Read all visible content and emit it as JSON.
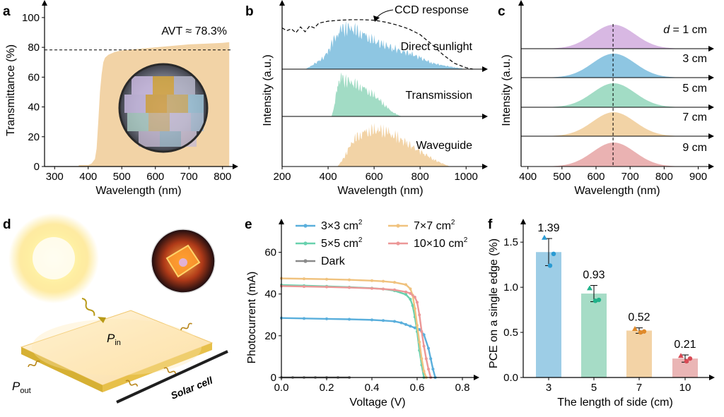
{
  "panel_letters": [
    "a",
    "b",
    "c",
    "d",
    "e",
    "f"
  ],
  "colors": {
    "tan": "#f2d3a6",
    "blue": "#8ec6e2",
    "green": "#a2dcc5",
    "purple": "#d8b8e3",
    "pink": "#eab2b2",
    "e_blue": "#5aafdc",
    "e_green": "#68d1ae",
    "e_orange": "#f0c27e",
    "e_pink": "#ec9797",
    "e_dark": "#8a8a8a",
    "f_blue": "#9dcde6",
    "f_green": "#a6dcc6",
    "f_tan": "#f3d3a6",
    "f_pink": "#eab5b5"
  },
  "panel_d": {
    "labels": {
      "p_in": "P",
      "p_in_sub": "in",
      "p_out": "P",
      "p_out_sub": "out",
      "solar_cell": "Solar cell"
    },
    "icons": [
      "sun-icon",
      "waveguide-slab",
      "solar-cell-bar",
      "photo-icon"
    ]
  },
  "chart_data": [
    {
      "panel": "a",
      "type": "area",
      "xlabel": "Wavelength (nm)",
      "ylabel": "Transmittance (%)",
      "xlim": [
        270,
        830
      ],
      "ylim": [
        0,
        108
      ],
      "xticks": [
        300,
        400,
        500,
        600,
        700,
        800
      ],
      "yticks": [
        0,
        20,
        40,
        60,
        80,
        100
      ],
      "annotation": "AVT ≈ 78.3%",
      "reference_line_y": 78.3,
      "x": [
        372,
        400,
        410,
        420,
        425,
        430,
        435,
        440,
        445,
        450,
        460,
        480,
        500,
        550,
        600,
        650,
        700,
        750,
        800,
        820
      ],
      "y": [
        1,
        1,
        2,
        5,
        12,
        30,
        50,
        62,
        70,
        73,
        75,
        77,
        78,
        79,
        80,
        81,
        82,
        82.5,
        83,
        83.5
      ],
      "inset": "photo"
    },
    {
      "panel": "b",
      "type": "area",
      "xlabel": "Wavelength (nm)",
      "ylabel": "Intensity (a.u.)",
      "xlim": [
        200,
        1070
      ],
      "xticks": [
        200,
        400,
        600,
        800,
        1000
      ],
      "series": [
        {
          "name": "Direct sunlight",
          "x": [
            300,
            320,
            350,
            380,
            400,
            420,
            440,
            460,
            480,
            500,
            520,
            540,
            560,
            580,
            600,
            640,
            680,
            720,
            760,
            800,
            850,
            900,
            950,
            1000
          ],
          "values": [
            0,
            0.05,
            0.15,
            0.25,
            0.4,
            0.6,
            0.78,
            0.88,
            0.92,
            0.9,
            0.85,
            0.8,
            0.74,
            0.68,
            0.62,
            0.54,
            0.47,
            0.4,
            0.34,
            0.25,
            0.14,
            0.08,
            0.04,
            0
          ]
        },
        {
          "name": "Transmission",
          "x": [
            415,
            430,
            440,
            450,
            460,
            480,
            500,
            520,
            540,
            560,
            580,
            600,
            620,
            640,
            660,
            680,
            700,
            720
          ],
          "values": [
            0,
            0.3,
            0.7,
            0.85,
            0.82,
            0.8,
            0.75,
            0.7,
            0.66,
            0.6,
            0.53,
            0.46,
            0.38,
            0.28,
            0.18,
            0.1,
            0.04,
            0
          ]
        },
        {
          "name": "Waveguide",
          "x": [
            440,
            460,
            480,
            500,
            520,
            540,
            560,
            580,
            600,
            620,
            640,
            660,
            680,
            700,
            740,
            780,
            820,
            860,
            900,
            930
          ],
          "values": [
            0,
            0.12,
            0.3,
            0.5,
            0.62,
            0.7,
            0.75,
            0.78,
            0.79,
            0.8,
            0.78,
            0.75,
            0.7,
            0.64,
            0.52,
            0.4,
            0.28,
            0.15,
            0.06,
            0
          ]
        },
        {
          "name": "CCD response",
          "x": [
            200,
            220,
            240,
            260,
            280,
            300,
            320,
            340,
            360,
            400,
            450,
            500,
            550,
            600,
            650,
            700,
            750,
            800,
            850,
            900,
            950,
            1000,
            1030
          ],
          "values": [
            0.86,
            0.8,
            0.84,
            0.76,
            0.88,
            0.78,
            0.9,
            0.86,
            0.96,
            1.0,
            1.02,
            1.03,
            1.03,
            1.02,
            0.98,
            0.92,
            0.84,
            0.72,
            0.52,
            0.3,
            0.12,
            0.03,
            0
          ]
        }
      ],
      "annotation": "CCD response"
    },
    {
      "panel": "c",
      "type": "area",
      "xlabel": "Wavelength (nm)",
      "ylabel": "Intensity (a.u.)",
      "xlim": [
        380,
        930
      ],
      "xticks": [
        400,
        500,
        600,
        700,
        800,
        900
      ],
      "reference_line_x": 650,
      "peak": 652,
      "series": [
        {
          "name": "d = 1 cm",
          "name_var": "d",
          "name_rest": " = 1 cm",
          "color": "purple"
        },
        {
          "name": "3 cm",
          "color": "blue"
        },
        {
          "name": "5 cm",
          "color": "green"
        },
        {
          "name": "7 cm",
          "color": "tan"
        },
        {
          "name": "9 cm",
          "color": "pink"
        }
      ]
    },
    {
      "panel": "e",
      "type": "line",
      "xlabel": "Voltage (V)",
      "ylabel": "Photocurrent (mA)",
      "xlim": [
        0,
        0.85
      ],
      "ylim": [
        0,
        70
      ],
      "xticks": [
        0.0,
        0.2,
        0.4,
        0.6,
        0.8
      ],
      "yticks": [
        0,
        20,
        40,
        60
      ],
      "series": [
        {
          "name": "3×3 cm",
          "sup": "2",
          "color": "e_blue",
          "x": [
            0,
            0.1,
            0.2,
            0.3,
            0.4,
            0.45,
            0.5,
            0.53,
            0.55,
            0.57,
            0.59,
            0.61,
            0.63,
            0.65,
            0.66,
            0.67,
            0.68
          ],
          "values": [
            28.5,
            28.3,
            28.1,
            27.9,
            27.6,
            27.3,
            26.9,
            26.2,
            25.4,
            24.6,
            23.8,
            23.0,
            20.5,
            14,
            9,
            4,
            0
          ]
        },
        {
          "name": "5×5 cm",
          "sup": "2",
          "color": "e_green",
          "x": [
            0,
            0.1,
            0.2,
            0.3,
            0.4,
            0.45,
            0.5,
            0.55,
            0.57,
            0.58,
            0.59,
            0.6,
            0.61,
            0.62,
            0.63
          ],
          "values": [
            44.3,
            44.0,
            43.7,
            43.3,
            42.8,
            42.4,
            41.6,
            39.8,
            37.5,
            34.5,
            29,
            22,
            13,
            6,
            0
          ]
        },
        {
          "name": "7×7 cm",
          "sup": "2",
          "color": "e_orange",
          "x": [
            0,
            0.1,
            0.2,
            0.3,
            0.4,
            0.45,
            0.5,
            0.55,
            0.57,
            0.58,
            0.59,
            0.6,
            0.61,
            0.62,
            0.63,
            0.64
          ],
          "values": [
            47.5,
            47.3,
            47.1,
            46.8,
            46.4,
            46.1,
            45.6,
            44.5,
            42.5,
            39.5,
            33,
            25,
            17,
            9,
            3,
            0
          ]
        },
        {
          "name": "10×10 cm",
          "sup": "2",
          "color": "e_pink",
          "x": [
            0,
            0.1,
            0.2,
            0.3,
            0.4,
            0.45,
            0.5,
            0.55,
            0.57,
            0.59,
            0.6,
            0.61,
            0.62,
            0.63,
            0.64,
            0.65,
            0.66
          ],
          "values": [
            43.8,
            43.6,
            43.4,
            43.1,
            42.7,
            42.4,
            42.0,
            41.0,
            40.3,
            38.5,
            36,
            30,
            22,
            15,
            9,
            4,
            0
          ]
        },
        {
          "name": "Dark",
          "color": "e_dark",
          "x": [
            0,
            0.05,
            0.1,
            0.15,
            0.2,
            0.25,
            0.3
          ],
          "values": [
            0,
            0,
            0,
            0,
            0,
            0,
            0
          ]
        }
      ]
    },
    {
      "panel": "f",
      "type": "bar",
      "xlabel": "The length of side (cm)",
      "ylabel": "PCE on a single edge (%)",
      "ylim": [
        0,
        1.65
      ],
      "yticks": [
        0.0,
        0.5,
        1.0,
        1.5
      ],
      "categories": [
        "3",
        "5",
        "7",
        "10"
      ],
      "values": [
        1.39,
        0.93,
        0.52,
        0.21
      ],
      "value_labels": [
        "1.39",
        "0.93",
        "0.52",
        "0.21"
      ],
      "errors": [
        0.15,
        0.09,
        0.03,
        0.04
      ],
      "points": [
        [
          1.55,
          1.24,
          1.37
        ],
        [
          0.99,
          0.85,
          0.86
        ],
        [
          0.54,
          0.5,
          0.51
        ],
        [
          0.24,
          0.18,
          0.21
        ]
      ],
      "bar_colors": [
        "f_blue",
        "f_green",
        "f_tan",
        "f_pink"
      ],
      "point_colors": [
        "#2a9bd3",
        "#21b28a",
        "#e08a2a",
        "#d94a55"
      ]
    }
  ]
}
